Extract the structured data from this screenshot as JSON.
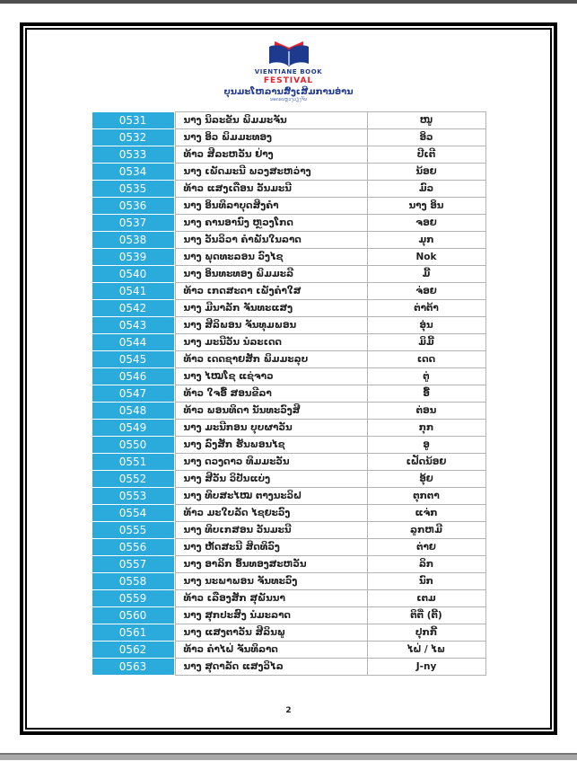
{
  "logo": {
    "icon": "open-book-festival-logo",
    "title_en_line1": "VIENTIANE BOOK",
    "title_en_line2": "FESTIVAL",
    "title_lao": "ບຸນມະໂຫລານສົ່ງເສີມການອ່ານ",
    "subtitle_lao": "ນະຄອນຫຼວງວຽງຈັນ",
    "color_blue": "#1e3a8f",
    "color_red": "#e8212d"
  },
  "colors": {
    "id_cell_background": "#2baadc",
    "id_cell_text": "#ffffff",
    "cell_border": "#b3b3b3",
    "page_border": "#000000",
    "body_text": "#1f1f1f"
  },
  "page": {
    "number": "2"
  },
  "table": {
    "rows": [
      {
        "id": "0531",
        "name": "ນາງ ນິລະຂັນ ພິມມະຈັນ",
        "nickname": "ໜູ"
      },
      {
        "id": "0532",
        "name": "ນາງ ອິວ ພິມມະທອງ",
        "nickname": "ອິວ"
      },
      {
        "id": "0533",
        "name": "ທ້າວ ສີລະຫວັນ ຢ່າງ",
        "nickname": "ປີເຕີ"
      },
      {
        "id": "0534",
        "name": "ນາງ ເພັດມະນີ ພວງສະຫວ່າງ",
        "nickname": "ນ້ອຍ"
      },
      {
        "id": "0535",
        "name": "ທ້າວ ແສງເດືອນ ວັນມະນີ",
        "nickname": "ມົວ"
      },
      {
        "id": "0536",
        "name": "ນາງ ອິນທິລາບຸດສິງຄຳ",
        "nickname": "ນາງ ອິນ"
      },
      {
        "id": "0537",
        "name": "ນາງ ຄານອານົງ ຫຼວງໂກດ",
        "nickname": "ຈອຍ"
      },
      {
        "id": "0538",
        "name": "ນາງ ວັນວິວາ ຄຳພັນໃນລາດ",
        "nickname": "ມຸກ"
      },
      {
        "id": "0539",
        "name": "ນາງ ພຸດທະລອນ ວົງໄຊ",
        "nickname": "Nok"
      },
      {
        "id": "0540",
        "name": "ນາງ ອິນທະທອງ ພິມມະລີ",
        "nickname": "ມີ້"
      },
      {
        "id": "0541",
        "name": "ທ້າວ ເກດສະດາ ເພັງຄຳໃສ",
        "nickname": "ຈ່ອຍ"
      },
      {
        "id": "0542",
        "name": "ນາງ ມີນາລັກ ຈັນທະແສງ",
        "nickname": "ຕ່າຕ້າ"
      },
      {
        "id": "0543",
        "name": "ນາງ ສີລິພອນ ຈັນທຸມພອນ",
        "nickname": "ອຸ່ນ"
      },
      {
        "id": "0544",
        "name": "ນາງ ມະນີວັນ ນໍລະເດດ",
        "nickname": "ມິມີ້"
      },
      {
        "id": "0545",
        "name": "ທ້າວ ເດດຊາຍສັກ ພິມມະລຸບ",
        "nickname": "ເດດ"
      },
      {
        "id": "0546",
        "name": "ນາງ ໄໝໂຊ ແຊ່ຈາວ",
        "nickname": "ຕູ່"
      },
      {
        "id": "0547",
        "name": "ທ້າວ ໃຈອື້ ສອນຂີລາ",
        "nickname": "ອື້"
      },
      {
        "id": "0548",
        "name": "ທ້າວ ພອນທິດາ ນັນທະວົງສີ",
        "nickname": "ຕ່ອນ"
      },
      {
        "id": "0549",
        "name": "ນາງ ມະນີກອນ ບຸບຜາວັນ",
        "nickname": "ກຸກ"
      },
      {
        "id": "0550",
        "name": "ນາງ ລົງສັກ ຮັນພອນໄຊ",
        "nickname": "ອູ"
      },
      {
        "id": "0551",
        "name": "ນາງ ດວງດາວ ທິມມະວັນ",
        "nickname": "ເຝັດນ້ອຍ"
      },
      {
        "id": "0552",
        "name": "ນາງ ສີວັນ ວິປັນແບ່ງ",
        "nickname": "ອຸ້ຍ"
      },
      {
        "id": "0553",
        "name": "ນາງ ທິບສະໄໝ ຕາງນະວິຝ",
        "nickname": "ຕຸກຕາ"
      },
      {
        "id": "0554",
        "name": "ທ້າວ ມະໃບລັດ ໄຊຍະວົງ",
        "nickname": "ແຈ່ກ"
      },
      {
        "id": "0555",
        "name": "ນາງ ທິບເກສອນ ວັນມະນີ",
        "nickname": "ລູກຫມີ"
      },
      {
        "id": "0556",
        "name": "ນາງ ຫັດສະນີ ສິດທິວົງ",
        "nickname": "ຕ່າຍ"
      },
      {
        "id": "0557",
        "name": "ນາງ ອາລິກ ອົ້ນທອງສະຫວັນ",
        "nickname": "ລິກ"
      },
      {
        "id": "0558",
        "name": "ນາງ ນະພາພອນ ຈັນທະວົງ",
        "nickname": "ນົກ"
      },
      {
        "id": "0559",
        "name": "ທ້າວ ເລືອງສັກ ສຸພັນນາ",
        "nickname": "ເຕມ"
      },
      {
        "id": "0560",
        "name": "ນາງ ສຸກປະສົງ ນໍມະລາດ",
        "nickname": "ຕິຕີ່ (ຕີ້)"
      },
      {
        "id": "0561",
        "name": "ນາງ ແສງຕາວັນ ສີລິນພູ",
        "nickname": "ປຸກກີ້"
      },
      {
        "id": "0562",
        "name": "ທ້າວ ຄຳໄຝ່ ຈັນທິລາດ",
        "nickname": "ໄຝ່ / ໄພ"
      },
      {
        "id": "0563",
        "name": "ນາງ ສຸດາລັດ ແສງວິໄລ",
        "nickname": "J-ny"
      }
    ]
  }
}
